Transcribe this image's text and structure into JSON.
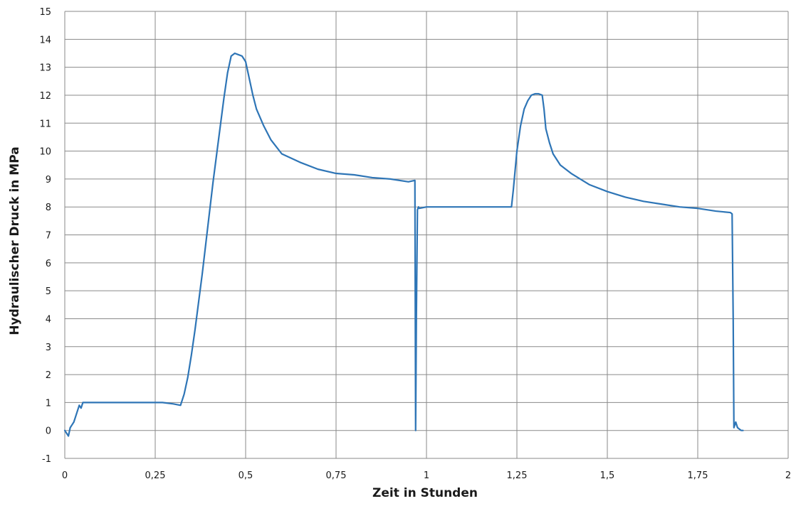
{
  "chart_data": {
    "type": "line",
    "title": "",
    "xlabel": "Zeit in Stunden",
    "ylabel": "Hydraulischer Druck in MPa",
    "xlim": [
      0,
      2
    ],
    "ylim": [
      -1,
      15
    ],
    "x_ticks": [
      0,
      0.25,
      0.5,
      0.75,
      1,
      1.25,
      1.5,
      1.75,
      2
    ],
    "x_tick_labels": [
      "0",
      "0,25",
      "0,5",
      "0,75",
      "1",
      "1,25",
      "1,5",
      "1,75",
      "2"
    ],
    "y_ticks": [
      -1,
      0,
      1,
      2,
      3,
      4,
      5,
      6,
      7,
      8,
      9,
      10,
      11,
      12,
      13,
      14,
      15
    ],
    "y_tick_labels": [
      "-1",
      "0",
      "1",
      "2",
      "3",
      "4",
      "5",
      "6",
      "7",
      "8",
      "9",
      "10",
      "11",
      "12",
      "13",
      "14",
      "15"
    ],
    "grid": true,
    "legend": "none",
    "series": [
      {
        "color": "#2e75b6",
        "x": [
          0,
          0.01,
          0.015,
          0.02,
          0.025,
          0.03,
          0.035,
          0.04,
          0.045,
          0.05,
          0.1,
          0.15,
          0.2,
          0.25,
          0.27,
          0.3,
          0.32,
          0.33,
          0.34,
          0.35,
          0.36,
          0.37,
          0.38,
          0.39,
          0.4,
          0.41,
          0.42,
          0.43,
          0.44,
          0.45,
          0.46,
          0.47,
          0.48,
          0.49,
          0.5,
          0.51,
          0.52,
          0.53,
          0.55,
          0.57,
          0.6,
          0.65,
          0.7,
          0.75,
          0.8,
          0.85,
          0.9,
          0.95,
          0.968,
          0.97,
          0.972,
          0.975,
          0.978,
          0.98,
          1.0,
          1.05,
          1.1,
          1.15,
          1.2,
          1.235,
          1.24,
          1.25,
          1.26,
          1.27,
          1.28,
          1.29,
          1.3,
          1.31,
          1.32,
          1.325,
          1.33,
          1.34,
          1.35,
          1.37,
          1.4,
          1.45,
          1.5,
          1.55,
          1.6,
          1.65,
          1.7,
          1.75,
          1.8,
          1.84,
          1.845,
          1.848,
          1.85,
          1.855,
          1.86,
          1.87,
          1.875
        ],
        "y": [
          0,
          -0.2,
          0.1,
          0.2,
          0.3,
          0.5,
          0.7,
          0.9,
          0.8,
          1.0,
          1.0,
          1.0,
          1.0,
          1.0,
          1.0,
          0.95,
          0.9,
          1.3,
          1.9,
          2.7,
          3.6,
          4.6,
          5.6,
          6.7,
          7.8,
          8.9,
          9.9,
          10.9,
          11.9,
          12.8,
          13.4,
          13.5,
          13.45,
          13.4,
          13.2,
          12.6,
          12.0,
          11.5,
          10.9,
          10.4,
          9.9,
          9.6,
          9.35,
          9.2,
          9.15,
          9.05,
          9.0,
          8.9,
          8.95,
          0,
          4.0,
          7.9,
          8.0,
          7.95,
          8.0,
          8.0,
          8.0,
          8.0,
          8.0,
          8.0,
          8.6,
          10.0,
          10.9,
          11.5,
          11.8,
          12.0,
          12.05,
          12.05,
          12.0,
          11.5,
          10.8,
          10.3,
          9.9,
          9.5,
          9.2,
          8.8,
          8.55,
          8.35,
          8.2,
          8.1,
          8.0,
          7.95,
          7.85,
          7.8,
          7.75,
          4.0,
          0.1,
          0.3,
          0.1,
          0,
          0
        ]
      }
    ]
  }
}
